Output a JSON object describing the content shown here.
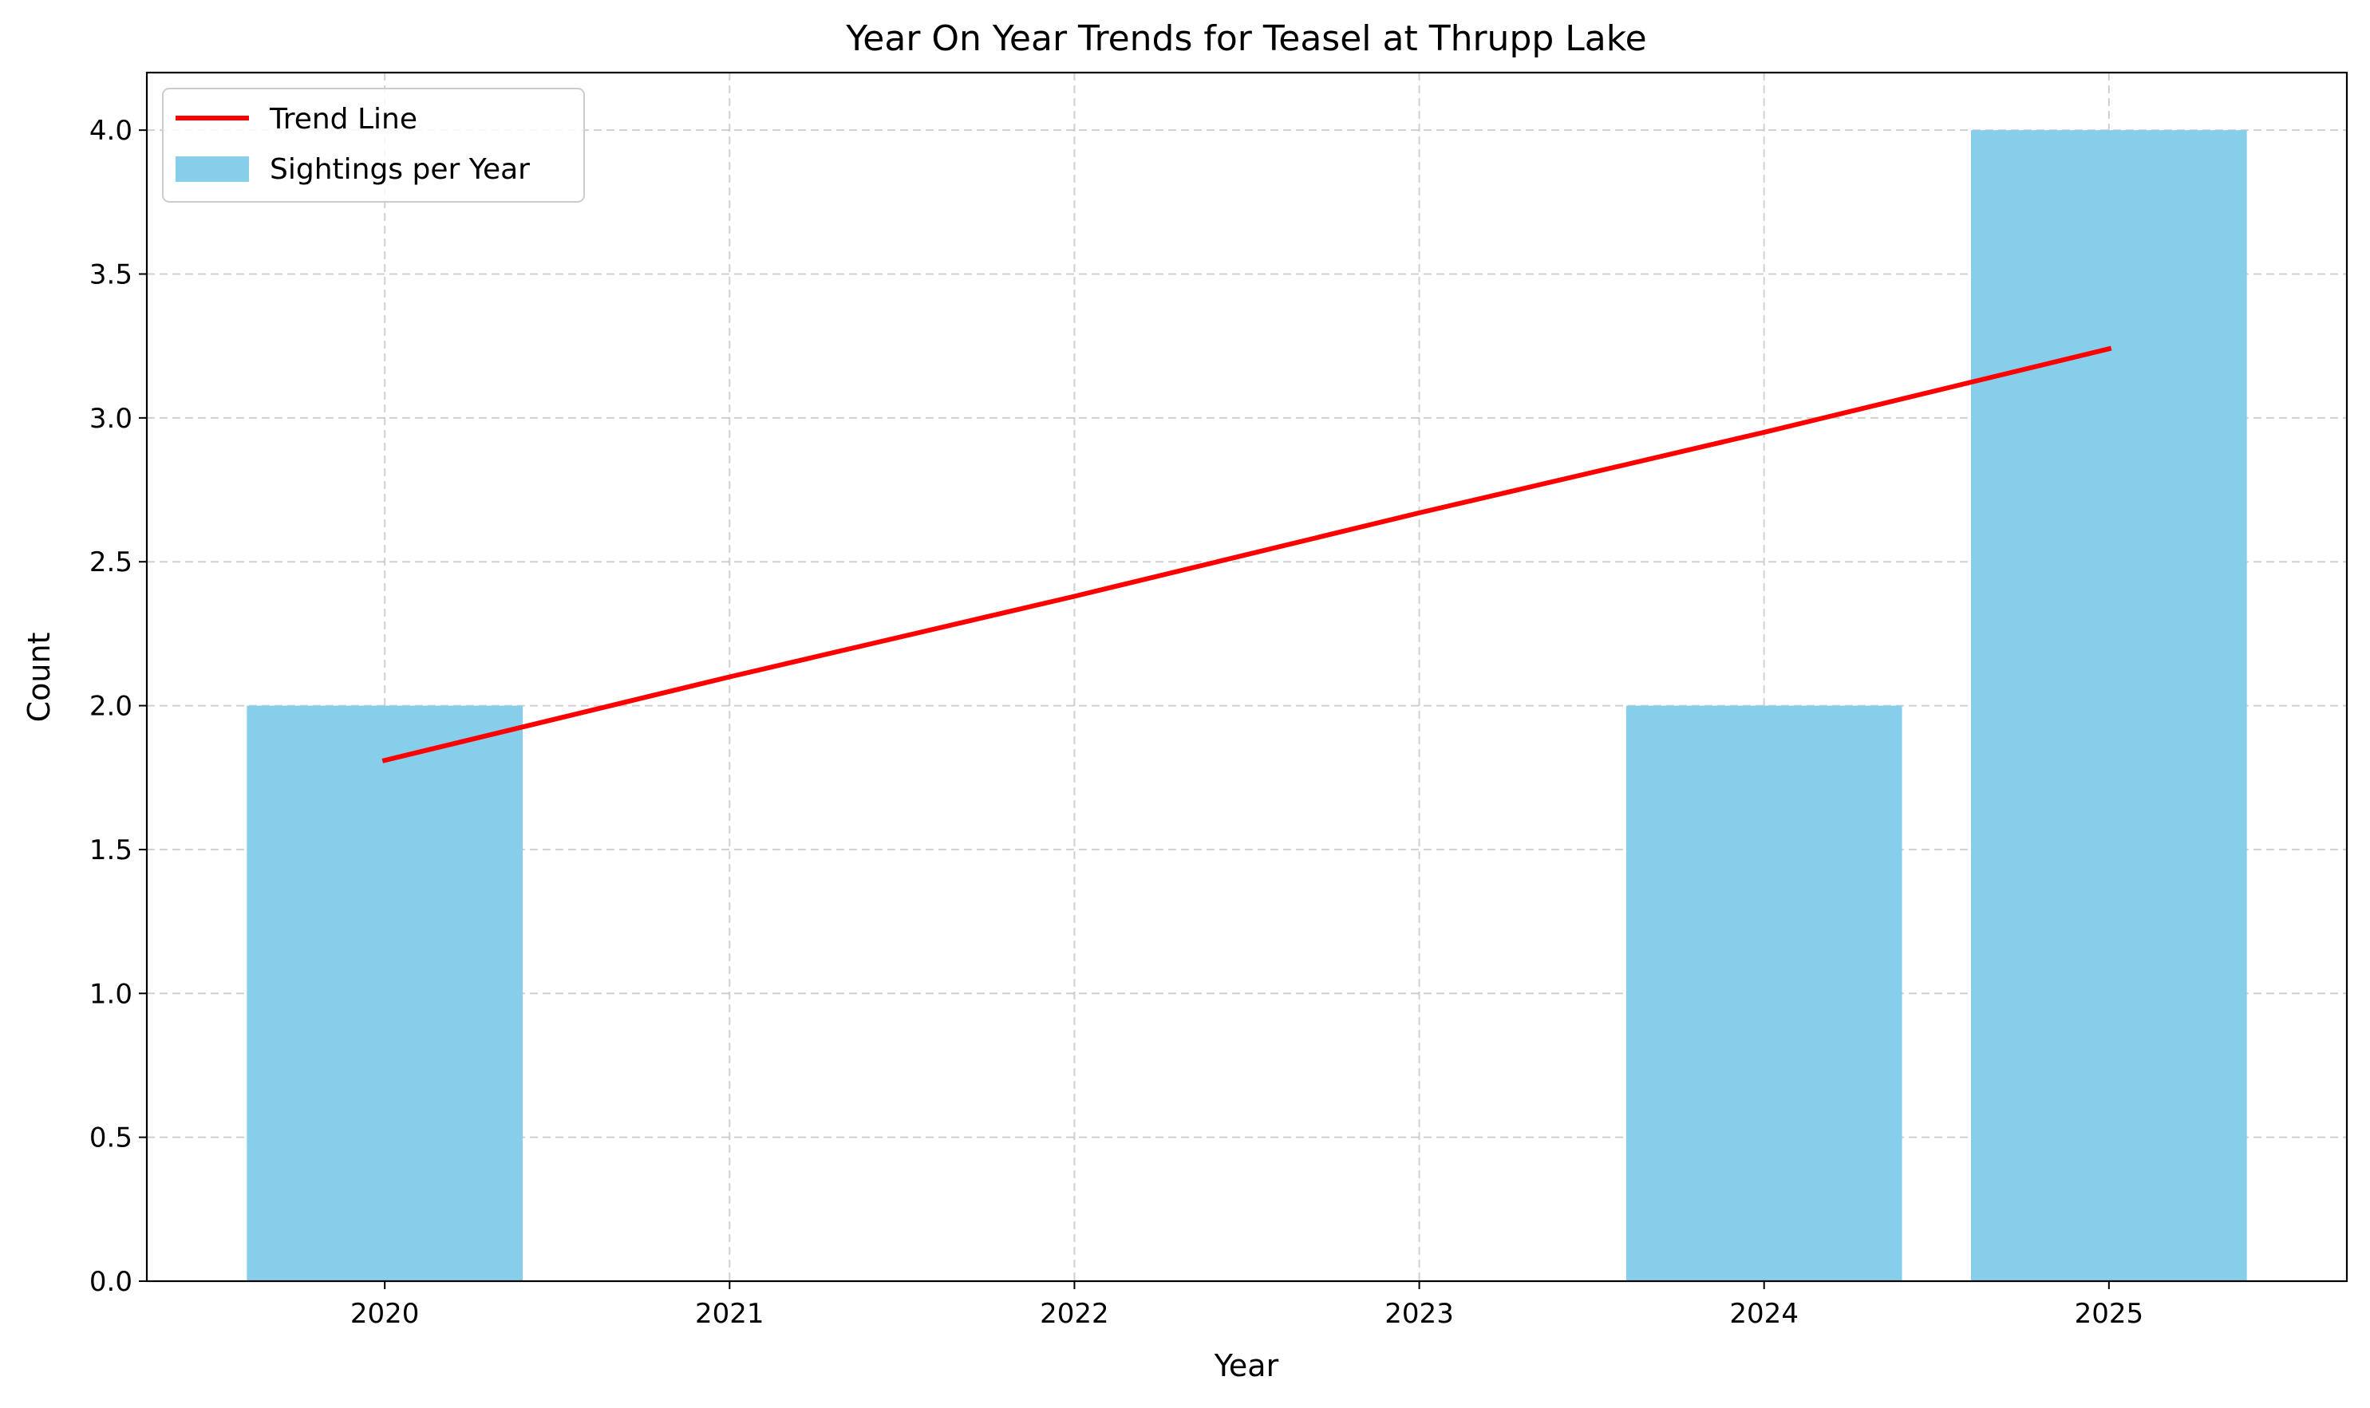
{
  "chart_data": {
    "type": "bar",
    "title": "Year On Year Trends for Teasel at Thrupp Lake",
    "xlabel": "Year",
    "ylabel": "Count",
    "categories": [
      "2020",
      "2021",
      "2022",
      "2023",
      "2024",
      "2025"
    ],
    "x": [
      2020,
      2021,
      2022,
      2023,
      2024,
      2025
    ],
    "series": [
      {
        "name": "Sightings per Year",
        "type": "bar",
        "color": "#87ceeb",
        "values": [
          2,
          0,
          0,
          0,
          2,
          4
        ]
      },
      {
        "name": "Trend Line",
        "type": "line",
        "color": "#ff0000",
        "values": [
          1.81,
          2.1,
          2.38,
          2.67,
          2.95,
          3.24
        ]
      }
    ],
    "ylim": [
      0,
      4.2
    ],
    "xlim": [
      2019.31,
      2025.69
    ],
    "yticks": [
      "0.0",
      "0.5",
      "1.0",
      "1.5",
      "2.0",
      "2.5",
      "3.0",
      "3.5",
      "4.0"
    ],
    "grid": true,
    "legend": "top-left"
  }
}
